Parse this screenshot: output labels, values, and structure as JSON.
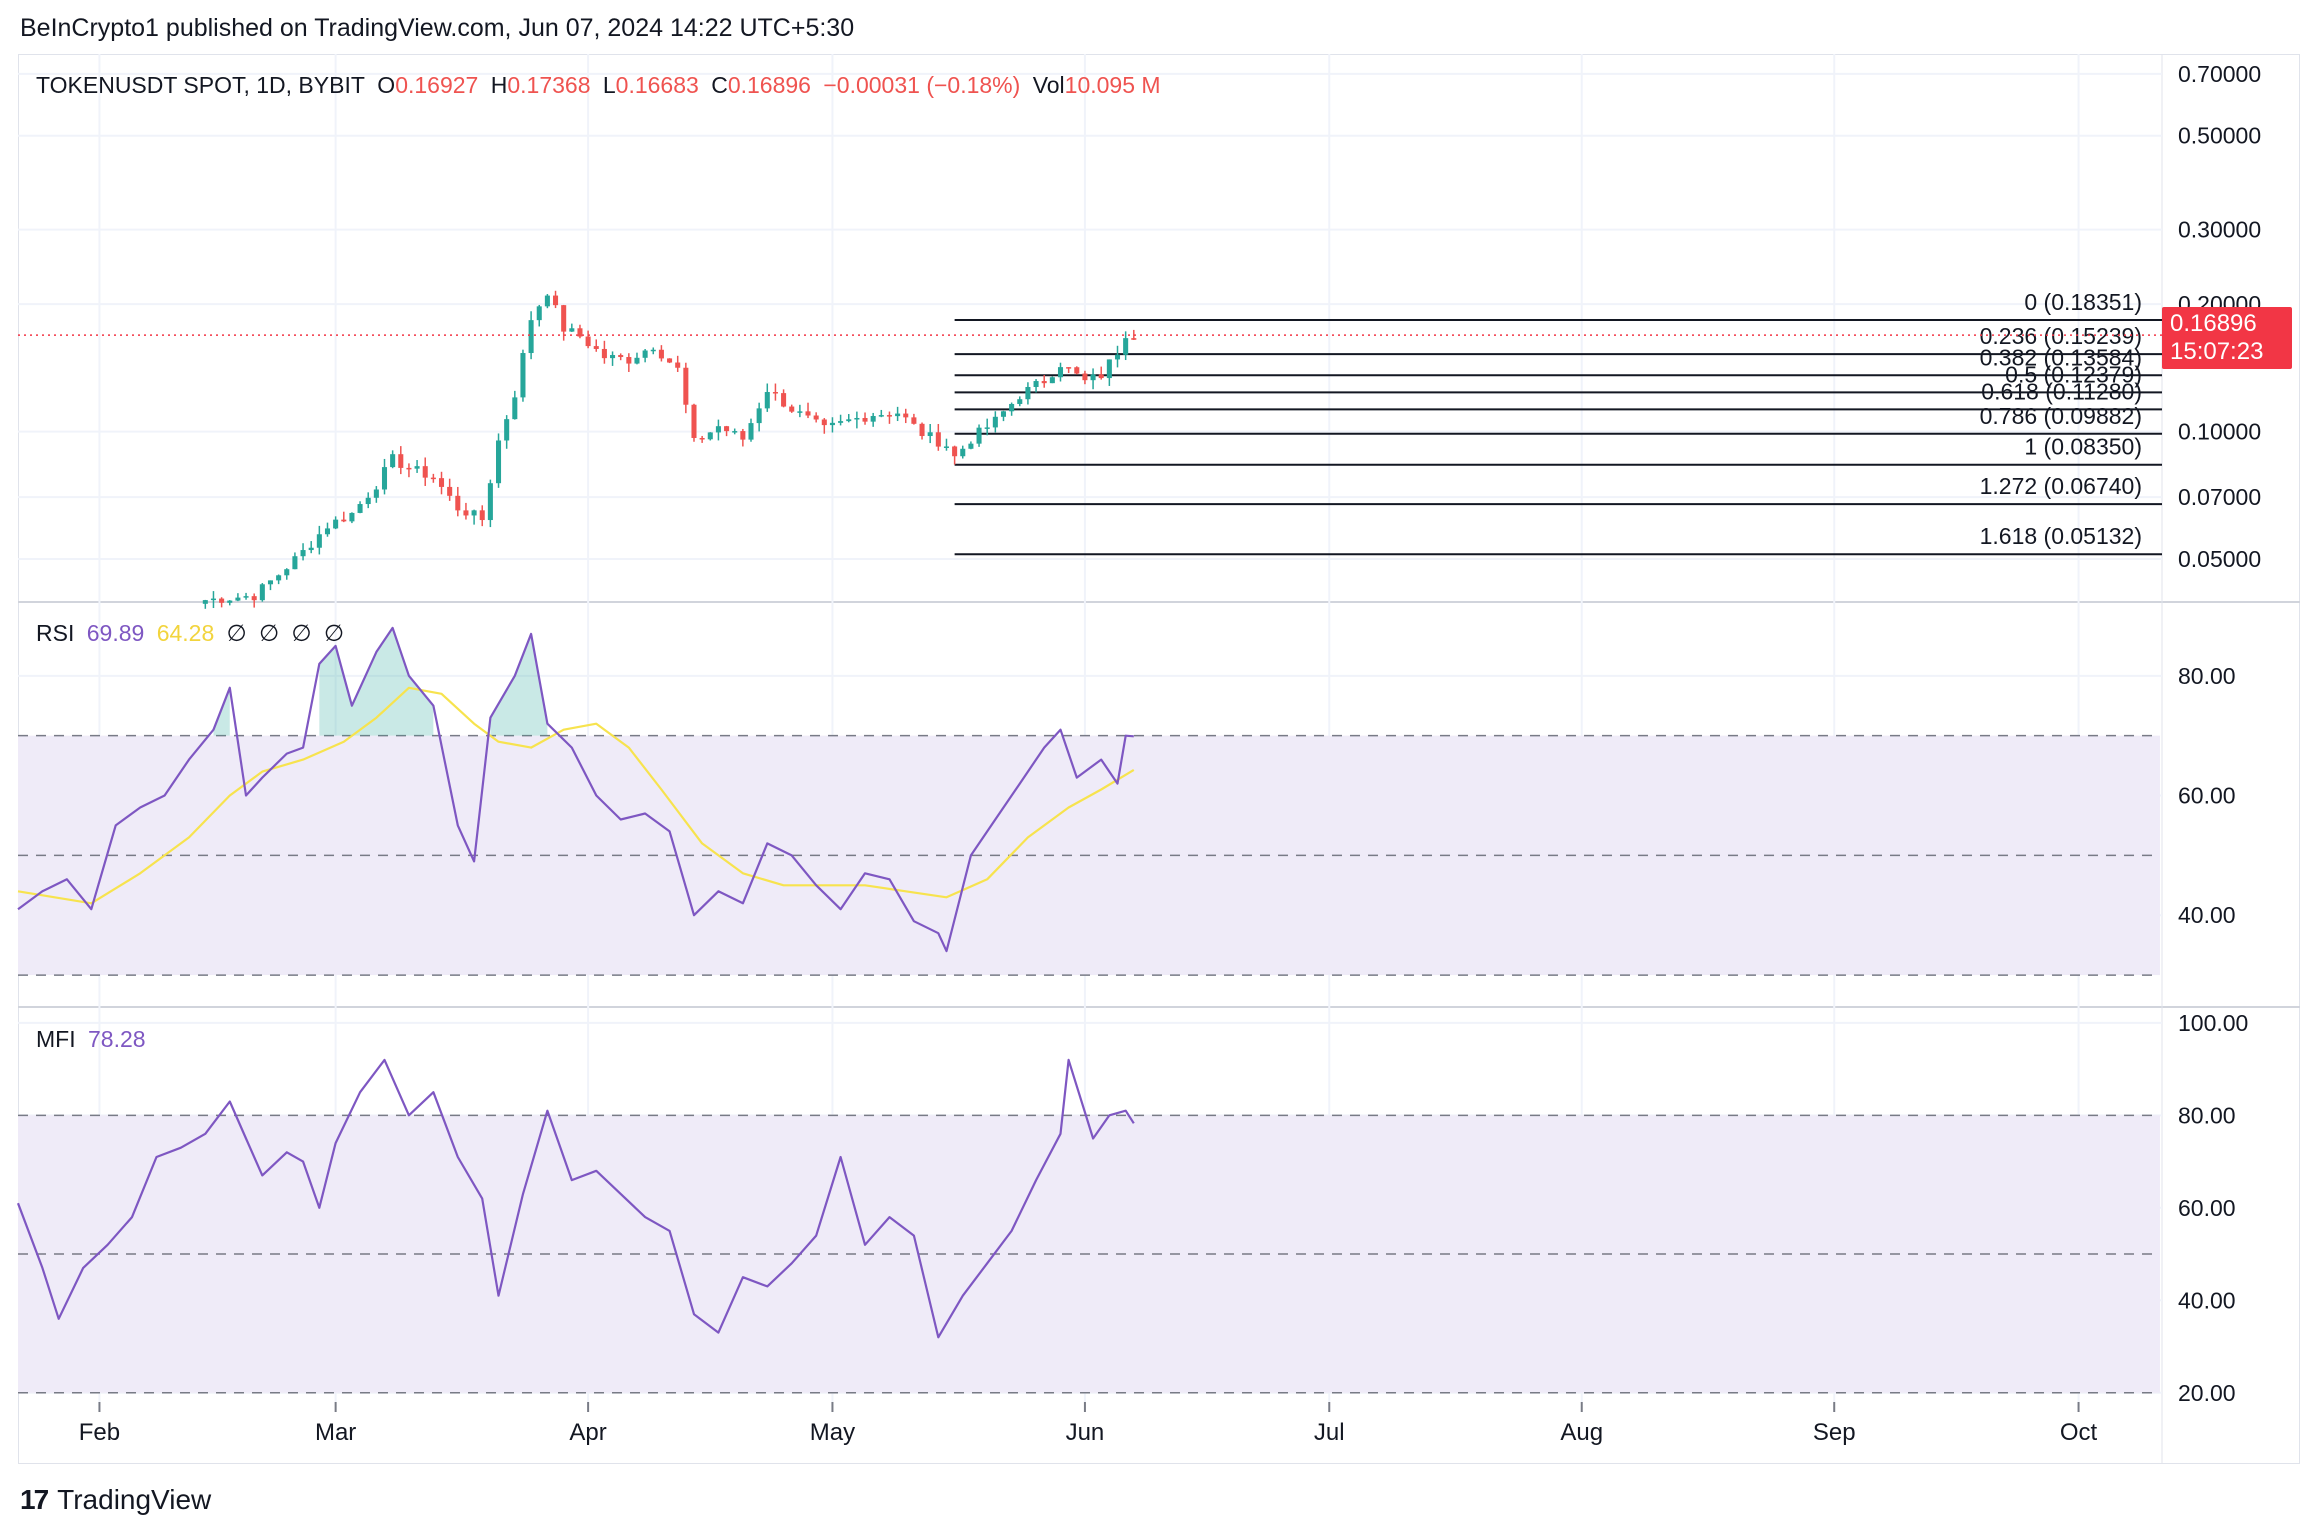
{
  "header": {
    "published": "BeInCrypto1 published on TradingView.com, Jun 07, 2024 14:22 UTC+5:30"
  },
  "symbol_legend": {
    "symbol": "TOKENUSDT SPOT, 1D, BYBIT",
    "o_label": "O",
    "o_value": "0.16927",
    "h_label": "H",
    "h_value": "0.17368",
    "l_label": "L",
    "l_value": "0.16683",
    "c_label": "C",
    "c_value": "0.16896",
    "change": "−0.00031 (−0.18%)",
    "vol_label": "Vol",
    "vol_value": "10.095 M"
  },
  "price_badge": {
    "price": "0.16896",
    "countdown": "15:07:23"
  },
  "rsi_legend": {
    "name": "RSI",
    "value": "69.89",
    "ma_value": "64.28",
    "hidden": [
      "∅",
      "∅",
      "∅",
      "∅"
    ]
  },
  "mfi_legend": {
    "name": "MFI",
    "value": "78.28"
  },
  "footer": {
    "brand": "TradingView",
    "logo": "17"
  },
  "colors": {
    "up": "#26a69a",
    "down": "#ef5350",
    "rsi": "#7e57c2",
    "rsi_ma": "#f7e34e",
    "band_fill": "#efebf8",
    "last_price": "#f23645",
    "grid": "#f0f3fa"
  },
  "chart_data": [
    {
      "type": "candlestick",
      "title": "TOKENUSDT SPOT, 1D, BYBIT",
      "y_scale": "log",
      "ylim": [
        0.04,
        0.78
      ],
      "y_ticks": [
        "0.70000",
        "0.50000",
        "0.30000",
        "0.20000",
        "0.10000",
        "0.07000",
        "0.05000"
      ],
      "x_ticks": [
        "Feb",
        "Mar",
        "Apr",
        "May",
        "Jun",
        "Jul",
        "Aug",
        "Sep",
        "Oct"
      ],
      "x_range": [
        "2024-01-22",
        "2024-10-11"
      ],
      "last_price": 0.16896,
      "ohlc_anchors": [
        {
          "date": "2024-02-14",
          "close": 0.04
        },
        {
          "date": "2024-02-20",
          "close": 0.041
        },
        {
          "date": "2024-02-23",
          "close": 0.046
        },
        {
          "date": "2024-02-26",
          "close": 0.052
        },
        {
          "date": "2024-02-29",
          "close": 0.06
        },
        {
          "date": "2024-03-03",
          "close": 0.064
        },
        {
          "date": "2024-03-06",
          "close": 0.075
        },
        {
          "date": "2024-03-08",
          "close": 0.086
        },
        {
          "date": "2024-03-10",
          "close": 0.082
        },
        {
          "date": "2024-03-13",
          "close": 0.078
        },
        {
          "date": "2024-03-16",
          "close": 0.066
        },
        {
          "date": "2024-03-19",
          "close": 0.062
        },
        {
          "date": "2024-03-21",
          "close": 0.095
        },
        {
          "date": "2024-03-23",
          "close": 0.123
        },
        {
          "date": "2024-03-25",
          "close": 0.185
        },
        {
          "date": "2024-03-27",
          "close": 0.215
        },
        {
          "date": "2024-03-29",
          "close": 0.175
        },
        {
          "date": "2024-03-31",
          "close": 0.168
        },
        {
          "date": "2024-04-03",
          "close": 0.15
        },
        {
          "date": "2024-04-06",
          "close": 0.148
        },
        {
          "date": "2024-04-09",
          "close": 0.16
        },
        {
          "date": "2024-04-12",
          "close": 0.14
        },
        {
          "date": "2024-04-14",
          "close": 0.094
        },
        {
          "date": "2024-04-17",
          "close": 0.103
        },
        {
          "date": "2024-04-20",
          "close": 0.096
        },
        {
          "date": "2024-04-23",
          "close": 0.126
        },
        {
          "date": "2024-04-26",
          "close": 0.113
        },
        {
          "date": "2024-04-30",
          "close": 0.101
        },
        {
          "date": "2024-05-03",
          "close": 0.106
        },
        {
          "date": "2024-05-06",
          "close": 0.11
        },
        {
          "date": "2024-05-09",
          "close": 0.111
        },
        {
          "date": "2024-05-12",
          "close": 0.099
        },
        {
          "date": "2024-05-15",
          "close": 0.093
        },
        {
          "date": "2024-05-16",
          "close": 0.087
        },
        {
          "date": "2024-05-18",
          "close": 0.096
        },
        {
          "date": "2024-05-21",
          "close": 0.106
        },
        {
          "date": "2024-05-24",
          "close": 0.122
        },
        {
          "date": "2024-05-27",
          "close": 0.132
        },
        {
          "date": "2024-05-29",
          "close": 0.145
        },
        {
          "date": "2024-06-01",
          "close": 0.131
        },
        {
          "date": "2024-06-03",
          "close": 0.136
        },
        {
          "date": "2024-06-05",
          "close": 0.155
        },
        {
          "date": "2024-06-06",
          "close": 0.171
        },
        {
          "date": "2024-06-07",
          "close": 0.169
        }
      ],
      "fibonacci": [
        {
          "level": "0",
          "price": 0.18351
        },
        {
          "level": "0.236",
          "price": 0.15239
        },
        {
          "level": "0.382",
          "price": 0.13584
        },
        {
          "level": "0.5",
          "price": 0.12379
        },
        {
          "level": "0.618",
          "price": 0.1128
        },
        {
          "level": "0.786",
          "price": 0.09882
        },
        {
          "level": "1",
          "price": 0.0835
        },
        {
          "level": "1.272",
          "price": 0.0674
        },
        {
          "level": "1.618",
          "price": 0.05132
        }
      ],
      "fib_start": "2024-05-16"
    },
    {
      "type": "line",
      "title": "RSI",
      "ylim": [
        25,
        92
      ],
      "y_ticks": [
        "80.00",
        "60.00",
        "40.00"
      ],
      "bands": [
        70,
        50,
        30
      ],
      "series": [
        {
          "name": "RSI",
          "color": "#7e57c2",
          "points": [
            [
              "2024-01-22",
              41
            ],
            [
              "2024-01-25",
              44
            ],
            [
              "2024-01-28",
              46
            ],
            [
              "2024-01-31",
              41
            ],
            [
              "2024-02-03",
              55
            ],
            [
              "2024-02-06",
              58
            ],
            [
              "2024-02-09",
              60
            ],
            [
              "2024-02-12",
              66
            ],
            [
              "2024-02-15",
              71
            ],
            [
              "2024-02-17",
              78
            ],
            [
              "2024-02-19",
              60
            ],
            [
              "2024-02-21",
              63
            ],
            [
              "2024-02-24",
              67
            ],
            [
              "2024-02-26",
              68
            ],
            [
              "2024-02-28",
              82
            ],
            [
              "2024-03-01",
              85
            ],
            [
              "2024-03-03",
              75
            ],
            [
              "2024-03-06",
              84
            ],
            [
              "2024-03-08",
              88
            ],
            [
              "2024-03-10",
              80
            ],
            [
              "2024-03-13",
              75
            ],
            [
              "2024-03-16",
              55
            ],
            [
              "2024-03-18",
              49
            ],
            [
              "2024-03-20",
              73
            ],
            [
              "2024-03-23",
              80
            ],
            [
              "2024-03-25",
              87
            ],
            [
              "2024-03-27",
              72
            ],
            [
              "2024-03-30",
              68
            ],
            [
              "2024-04-02",
              60
            ],
            [
              "2024-04-05",
              56
            ],
            [
              "2024-04-08",
              57
            ],
            [
              "2024-04-11",
              54
            ],
            [
              "2024-04-14",
              40
            ],
            [
              "2024-04-17",
              44
            ],
            [
              "2024-04-20",
              42
            ],
            [
              "2024-04-23",
              52
            ],
            [
              "2024-04-26",
              50
            ],
            [
              "2024-04-29",
              45
            ],
            [
              "2024-05-02",
              41
            ],
            [
              "2024-05-05",
              47
            ],
            [
              "2024-05-08",
              46
            ],
            [
              "2024-05-11",
              39
            ],
            [
              "2024-05-14",
              37
            ],
            [
              "2024-05-15",
              34
            ],
            [
              "2024-05-18",
              50
            ],
            [
              "2024-05-21",
              56
            ],
            [
              "2024-05-24",
              62
            ],
            [
              "2024-05-27",
              68
            ],
            [
              "2024-05-29",
              71
            ],
            [
              "2024-05-31",
              63
            ],
            [
              "2024-06-03",
              66
            ],
            [
              "2024-06-05",
              62
            ],
            [
              "2024-06-06",
              70
            ],
            [
              "2024-06-07",
              69.89
            ]
          ]
        },
        {
          "name": "RSI-based MA",
          "color": "#f7e34e",
          "points": [
            [
              "2024-01-22",
              44
            ],
            [
              "2024-01-31",
              42
            ],
            [
              "2024-02-06",
              47
            ],
            [
              "2024-02-12",
              53
            ],
            [
              "2024-02-17",
              60
            ],
            [
              "2024-02-21",
              64
            ],
            [
              "2024-02-26",
              66
            ],
            [
              "2024-03-02",
              69
            ],
            [
              "2024-03-06",
              73
            ],
            [
              "2024-03-10",
              78
            ],
            [
              "2024-03-14",
              77
            ],
            [
              "2024-03-18",
              72
            ],
            [
              "2024-03-21",
              69
            ],
            [
              "2024-03-25",
              68
            ],
            [
              "2024-03-29",
              71
            ],
            [
              "2024-04-02",
              72
            ],
            [
              "2024-04-06",
              68
            ],
            [
              "2024-04-10",
              61
            ],
            [
              "2024-04-15",
              52
            ],
            [
              "2024-04-20",
              47
            ],
            [
              "2024-04-25",
              45
            ],
            [
              "2024-04-30",
              45
            ],
            [
              "2024-05-05",
              45
            ],
            [
              "2024-05-10",
              44
            ],
            [
              "2024-05-15",
              43
            ],
            [
              "2024-05-20",
              46
            ],
            [
              "2024-05-25",
              53
            ],
            [
              "2024-05-30",
              58
            ],
            [
              "2024-06-03",
              61
            ],
            [
              "2024-06-07",
              64.28
            ]
          ]
        }
      ]
    },
    {
      "type": "line",
      "title": "MFI",
      "ylim": [
        18,
        103
      ],
      "y_ticks": [
        "100.00",
        "80.00",
        "60.00",
        "40.00",
        "20.00"
      ],
      "bands": [
        80,
        50,
        20
      ],
      "series": [
        {
          "name": "MFI",
          "color": "#7e57c2",
          "points": [
            [
              "2024-01-22",
              61
            ],
            [
              "2024-01-25",
              47
            ],
            [
              "2024-01-27",
              36
            ],
            [
              "2024-01-30",
              47
            ],
            [
              "2024-02-02",
              52
            ],
            [
              "2024-02-05",
              58
            ],
            [
              "2024-02-08",
              71
            ],
            [
              "2024-02-11",
              73
            ],
            [
              "2024-02-14",
              76
            ],
            [
              "2024-02-17",
              83
            ],
            [
              "2024-02-19",
              75
            ],
            [
              "2024-02-21",
              67
            ],
            [
              "2024-02-24",
              72
            ],
            [
              "2024-02-26",
              70
            ],
            [
              "2024-02-28",
              60
            ],
            [
              "2024-03-01",
              74
            ],
            [
              "2024-03-04",
              85
            ],
            [
              "2024-03-07",
              92
            ],
            [
              "2024-03-10",
              80
            ],
            [
              "2024-03-13",
              85
            ],
            [
              "2024-03-16",
              71
            ],
            [
              "2024-03-19",
              62
            ],
            [
              "2024-03-21",
              41
            ],
            [
              "2024-03-24",
              63
            ],
            [
              "2024-03-27",
              81
            ],
            [
              "2024-03-30",
              66
            ],
            [
              "2024-04-02",
              68
            ],
            [
              "2024-04-05",
              63
            ],
            [
              "2024-04-08",
              58
            ],
            [
              "2024-04-11",
              55
            ],
            [
              "2024-04-14",
              37
            ],
            [
              "2024-04-17",
              33
            ],
            [
              "2024-04-20",
              45
            ],
            [
              "2024-04-23",
              43
            ],
            [
              "2024-04-26",
              48
            ],
            [
              "2024-04-29",
              54
            ],
            [
              "2024-05-02",
              71
            ],
            [
              "2024-05-05",
              52
            ],
            [
              "2024-05-08",
              58
            ],
            [
              "2024-05-11",
              54
            ],
            [
              "2024-05-14",
              32
            ],
            [
              "2024-05-17",
              41
            ],
            [
              "2024-05-20",
              48
            ],
            [
              "2024-05-23",
              55
            ],
            [
              "2024-05-26",
              66
            ],
            [
              "2024-05-29",
              76
            ],
            [
              "2024-05-30",
              92
            ],
            [
              "2024-06-02",
              75
            ],
            [
              "2024-06-04",
              80
            ],
            [
              "2024-06-06",
              81
            ],
            [
              "2024-06-07",
              78.28
            ]
          ]
        }
      ]
    }
  ]
}
